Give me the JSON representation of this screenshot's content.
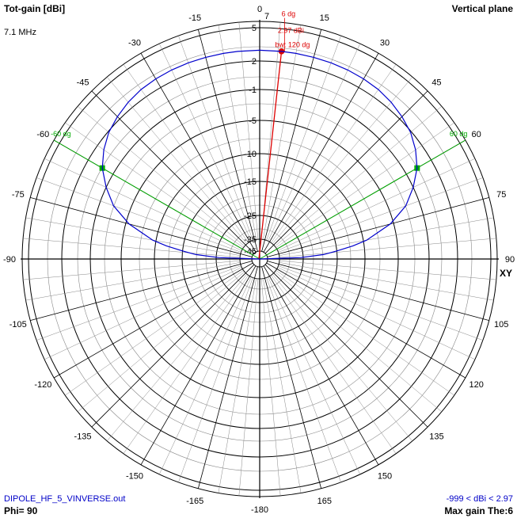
{
  "header": {
    "title": "Tot-gain [dBi]",
    "frequency": "7.1 MHz",
    "plane": "Vertical plane"
  },
  "footer": {
    "file": "DIPOLE_HF_5_VINVERSE.out",
    "phi": "Phi= 90",
    "range": "-999 < dBi < 2.97",
    "max_gain": "Max gain The:6"
  },
  "colors": {
    "pattern": "#0000cc",
    "max_gain_marker": "#dd0000",
    "beamwidth": "#00aa00",
    "grid": "#000000",
    "minor_grid": "#888888"
  },
  "chart_data": {
    "type": "polar",
    "angle_unit": "deg",
    "angle_zero": "top",
    "angle_ticks": [
      0,
      15,
      30,
      45,
      60,
      75,
      90,
      105,
      120,
      135,
      150,
      165,
      -180,
      -165,
      -150,
      -135,
      -120,
      -105,
      -90,
      -75,
      -60,
      -45,
      -30,
      -15
    ],
    "radial_ticks_dBi": [
      5,
      2,
      -1,
      -5,
      -10,
      -15,
      -25,
      -35,
      -45
    ],
    "radial_top_label": "7",
    "axis_label_right": "XY",
    "series": [
      {
        "theta": [
          -90,
          -88,
          -86,
          -84,
          -82,
          -80,
          -75,
          -70,
          -65,
          -60,
          -55,
          -50,
          -45,
          -40,
          -35,
          -30,
          -25,
          -20,
          -15,
          -10,
          -6,
          0,
          6,
          10,
          15,
          20,
          25,
          30,
          35,
          40,
          45,
          50,
          55,
          60,
          65,
          70,
          75,
          80,
          82,
          84,
          86,
          88,
          90
        ],
        "gain_dBi": [
          -999,
          -26,
          -19,
          -15,
          -12,
          -9.5,
          -5.5,
          -2.8,
          -1,
          0.3,
          1.2,
          1.9,
          2.3,
          2.6,
          2.8,
          2.9,
          2.95,
          2.97,
          2.97,
          2.97,
          2.97,
          2.97,
          2.97,
          2.97,
          2.97,
          2.97,
          2.95,
          2.9,
          2.8,
          2.6,
          2.3,
          1.9,
          1.2,
          0.3,
          -1,
          -2.8,
          -5.5,
          -9.5,
          -12,
          -15,
          -19,
          -26,
          -999
        ]
      }
    ],
    "max_marker": {
      "angle_label": "6 dg",
      "gain_label": "2.97 dBi",
      "bw_label": "bw: 120 dg",
      "theta": 6,
      "gain_dBi": 2.97
    },
    "beamwidth_markers": [
      {
        "label": "-60 dg",
        "theta": -60
      },
      {
        "label": "60 dg",
        "theta": 60
      }
    ]
  }
}
